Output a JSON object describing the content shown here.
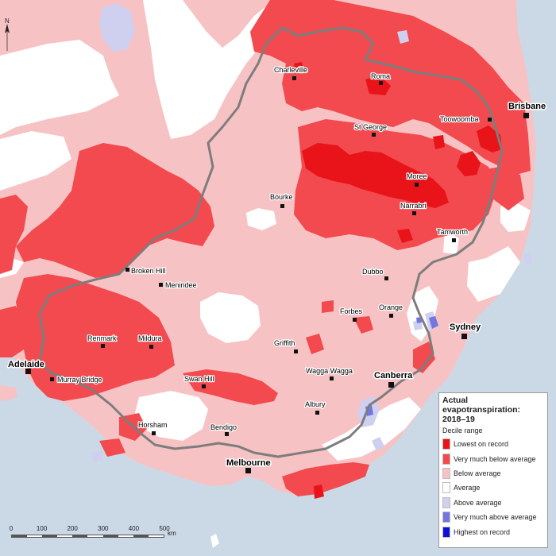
{
  "legend": {
    "title": "Actual\nevapotranspiration:\n2018–19",
    "subtitle": "Decile range",
    "items": [
      {
        "label": "Lowest on record",
        "color": "#e8141a"
      },
      {
        "label": "Very much below average",
        "color": "#f24a4e"
      },
      {
        "label": "Below average",
        "color": "#f7c2c4"
      },
      {
        "label": "Average",
        "color": "#ffffff"
      },
      {
        "label": "Above average",
        "color": "#cfcff0"
      },
      {
        "label": "Very much above average",
        "color": "#7575df"
      },
      {
        "label": "Highest on record",
        "color": "#1010d8"
      }
    ]
  },
  "scale": {
    "ticks": [
      "0",
      "100",
      "200",
      "300",
      "400",
      "500"
    ],
    "unit": "km"
  },
  "places": {
    "charleville": "Charleville",
    "roma": "Roma",
    "brisbane": "Brisbane",
    "toowoomba": "Toowoomba",
    "st_george": "St George",
    "moree": "Moree",
    "bourke": "Bourke",
    "narrabri": "Narrabri",
    "tamworth": "Tamworth",
    "broken_hill": "Broken Hill",
    "menindee": "Menindee",
    "dubbo": "Dubbo",
    "forbes": "Forbes",
    "orange": "Orange",
    "sydney": "Sydney",
    "renmark": "Renmark",
    "mildura": "Mildura",
    "griffith": "Griffith",
    "adelaide": "Adelaide",
    "murray_bridge": "Murray Bridge",
    "wagga_wagga": "Wagga Wagga",
    "canberra": "Canberra",
    "swan_hill": "Swan Hill",
    "albury": "Albury",
    "horsham": "Horsham",
    "bendigo": "Bendigo",
    "melbourne": "Melbourne"
  },
  "colors": {
    "sea": "#cbd9e6",
    "lowest_on_record": "#e8141a",
    "very_much_below_average": "#f24a4e",
    "below_average": "#f7c2c4",
    "average": "#ffffff",
    "above_average": "#cfcff0",
    "very_much_above_average": "#7575df",
    "highest_on_record": "#1010d8",
    "basin_boundary": "#7d7d7d"
  }
}
